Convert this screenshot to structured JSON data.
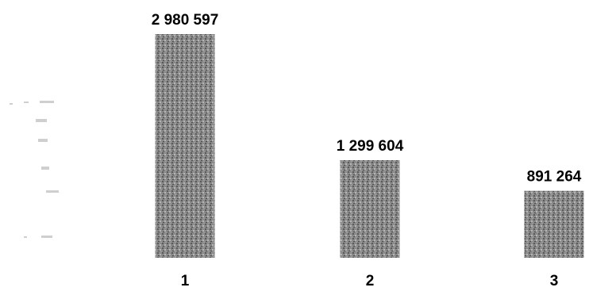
{
  "chart_data": {
    "type": "bar",
    "categories": [
      "1",
      "2",
      "3"
    ],
    "values": [
      2980597,
      1299604,
      891264
    ],
    "value_labels": [
      "2 980 597",
      "1 299 604",
      "891 264"
    ],
    "title": "",
    "xlabel": "",
    "ylabel": "",
    "ylim": [
      0,
      2980597
    ],
    "grid": false,
    "legend": "none",
    "bar_color": "#7a7a7a"
  }
}
